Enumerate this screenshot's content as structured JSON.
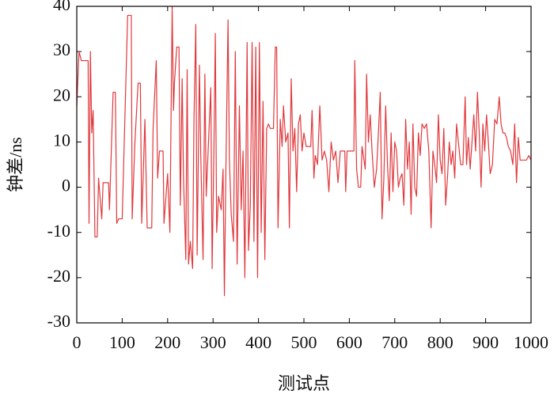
{
  "chart_data": {
    "type": "line",
    "xlabel": "测试点",
    "ylabel": "钟差/ns",
    "xlim": [
      0,
      1000
    ],
    "xticks": [
      0,
      100,
      200,
      300,
      400,
      500,
      600,
      700,
      800,
      900,
      1000
    ],
    "ylim": [
      -30,
      40
    ],
    "yticks": [
      -30,
      -20,
      -10,
      0,
      10,
      20,
      30,
      40
    ],
    "x": [
      0,
      5,
      10,
      25,
      27,
      30,
      33,
      36,
      40,
      45,
      48,
      55,
      58,
      70,
      72,
      80,
      85,
      88,
      92,
      100,
      112,
      120,
      122,
      128,
      135,
      140,
      143,
      150,
      155,
      165,
      168,
      175,
      178,
      182,
      190,
      192,
      200,
      205,
      210,
      213,
      215,
      220,
      225,
      228,
      232,
      235,
      240,
      243,
      246,
      250,
      255,
      258,
      262,
      265,
      270,
      273,
      278,
      282,
      285,
      290,
      295,
      298,
      302,
      305,
      308,
      312,
      318,
      322,
      325,
      328,
      333,
      336,
      340,
      345,
      349,
      353,
      358,
      362,
      366,
      370,
      375,
      378,
      382,
      386,
      390,
      394,
      398,
      402,
      406,
      410,
      414,
      418,
      422,
      426,
      433,
      437,
      440,
      443,
      448,
      452,
      455,
      460,
      465,
      468,
      472,
      476,
      480,
      484,
      488,
      492,
      496,
      500,
      505,
      515,
      518,
      522,
      525,
      530,
      535,
      540,
      545,
      550,
      555,
      560,
      565,
      570,
      575,
      580,
      590,
      592,
      595,
      610,
      612,
      616,
      620,
      625,
      628,
      635,
      638,
      642,
      646,
      650,
      655,
      660,
      664,
      668,
      672,
      676,
      680,
      684,
      688,
      692,
      696,
      700,
      704,
      708,
      712,
      716,
      720,
      724,
      728,
      732,
      736,
      740,
      744,
      748,
      752,
      756,
      760,
      765,
      770,
      775,
      780,
      784,
      788,
      792,
      796,
      800,
      804,
      808,
      812,
      816,
      820,
      824,
      828,
      832,
      836,
      840,
      845,
      850,
      855,
      858,
      862,
      866,
      870,
      874,
      878,
      882,
      886,
      890,
      894,
      898,
      902,
      906,
      910,
      915,
      920,
      925,
      930,
      934,
      938,
      942,
      946,
      950,
      955,
      960,
      964,
      968,
      972,
      976,
      980,
      985,
      990,
      995,
      1000
    ],
    "series": [
      {
        "color": "#e0383c",
        "values": [
          18,
          30,
          28,
          28,
          -8,
          30,
          12,
          17,
          -11,
          -11,
          2,
          -7,
          1,
          1,
          -5,
          21,
          21,
          -8,
          -7,
          -7,
          38,
          38,
          -7,
          10,
          23,
          23,
          -8,
          15,
          -9,
          -9,
          13,
          28,
          2,
          8,
          8,
          -8,
          3,
          -10,
          40,
          17,
          23,
          31,
          31,
          -4,
          24,
          2,
          -16,
          26,
          -17,
          -12,
          -18,
          15,
          36,
          -15,
          27,
          7,
          -16,
          25,
          -2,
          10,
          22,
          -18,
          9,
          34,
          -10,
          -2,
          -5,
          4,
          -24,
          2,
          37,
          6,
          -6,
          -12,
          30,
          -17,
          18,
          -5,
          8,
          -20,
          32,
          -14,
          -4,
          32,
          -12,
          31,
          -20,
          32,
          -10,
          19,
          -16,
          13,
          14,
          13,
          13,
          31,
          31,
          -9,
          15,
          9,
          18,
          10,
          12,
          -9,
          24,
          8,
          13,
          -1,
          14,
          16,
          8,
          12,
          9,
          9,
          17,
          2,
          7,
          5,
          18,
          6,
          8,
          6,
          -1,
          10,
          6,
          8,
          1,
          8,
          8,
          -1,
          8,
          8,
          28,
          4,
          0,
          0,
          9,
          4,
          25,
          10,
          16,
          8,
          0,
          4,
          12,
          21,
          -7,
          2,
          18,
          5,
          -3,
          12,
          -1,
          10,
          8,
          0,
          2,
          3,
          -4,
          15,
          4,
          10,
          -6,
          14,
          0,
          -2,
          12,
          7,
          14,
          13,
          14,
          8,
          -9,
          8,
          5,
          1,
          16,
          6,
          3,
          13,
          -4,
          2,
          10,
          5,
          8,
          2,
          14,
          10,
          5,
          5,
          20,
          5,
          11,
          4,
          10,
          16,
          8,
          21,
          12,
          0,
          14,
          8,
          16,
          10,
          3,
          5,
          15,
          14,
          20,
          14,
          12,
          12,
          11,
          9,
          8,
          5,
          14,
          1,
          11,
          6,
          6,
          6,
          6,
          7,
          6
        ]
      }
    ]
  }
}
